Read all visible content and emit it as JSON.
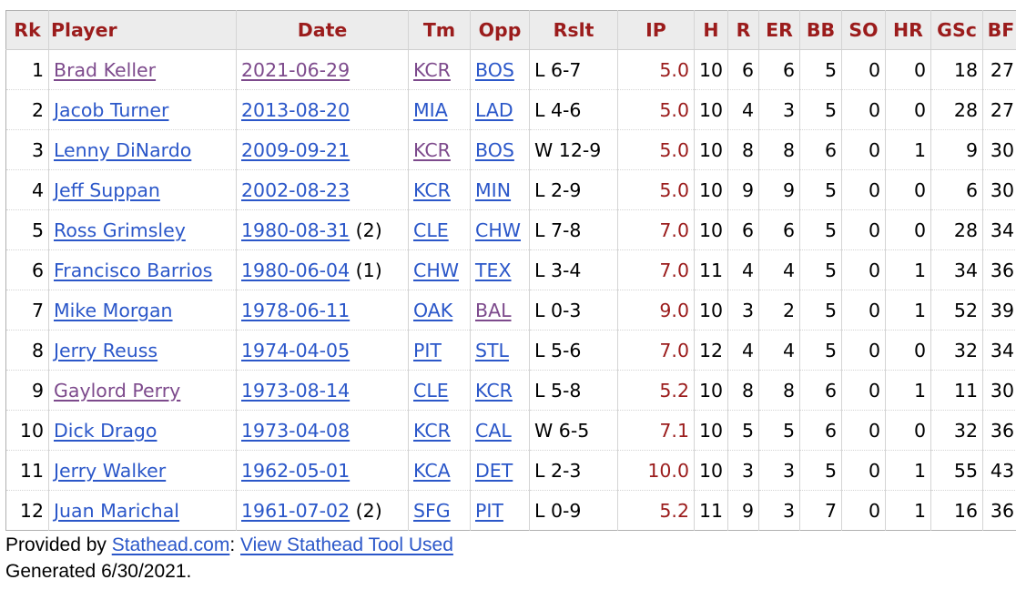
{
  "table": {
    "headers": [
      "Rk",
      "Player",
      "Date",
      "Tm",
      "Opp",
      "Rslt",
      "IP",
      "H",
      "R",
      "ER",
      "BB",
      "SO",
      "HR",
      "GSc",
      "BF"
    ],
    "rows": [
      {
        "rk": "1",
        "player": "Brad Keller",
        "player_visited": true,
        "date": "2021-06-29",
        "date_visited": true,
        "date_note": "",
        "tm": "KCR",
        "tm_visited": true,
        "opp": "BOS",
        "opp_visited": false,
        "rslt": "L 6-7",
        "ip": "5.0",
        "h": "10",
        "r": "6",
        "er": "6",
        "bb": "5",
        "so": "0",
        "hr": "0",
        "gsc": "18",
        "bf": "27"
      },
      {
        "rk": "2",
        "player": "Jacob Turner",
        "player_visited": false,
        "date": "2013-08-20",
        "date_visited": false,
        "date_note": "",
        "tm": "MIA",
        "tm_visited": false,
        "opp": "LAD",
        "opp_visited": false,
        "rslt": "L 4-6",
        "ip": "5.0",
        "h": "10",
        "r": "4",
        "er": "3",
        "bb": "5",
        "so": "0",
        "hr": "0",
        "gsc": "28",
        "bf": "27"
      },
      {
        "rk": "3",
        "player": "Lenny DiNardo",
        "player_visited": false,
        "date": "2009-09-21",
        "date_visited": false,
        "date_note": "",
        "tm": "KCR",
        "tm_visited": true,
        "opp": "BOS",
        "opp_visited": false,
        "rslt": "W 12-9",
        "ip": "5.0",
        "h": "10",
        "r": "8",
        "er": "8",
        "bb": "6",
        "so": "0",
        "hr": "1",
        "gsc": "9",
        "bf": "30"
      },
      {
        "rk": "4",
        "player": "Jeff Suppan",
        "player_visited": false,
        "date": "2002-08-23",
        "date_visited": false,
        "date_note": "",
        "tm": "KCR",
        "tm_visited": false,
        "opp": "MIN",
        "opp_visited": false,
        "rslt": "L 2-9",
        "ip": "5.0",
        "h": "10",
        "r": "9",
        "er": "9",
        "bb": "5",
        "so": "0",
        "hr": "0",
        "gsc": "6",
        "bf": "30"
      },
      {
        "rk": "5",
        "player": "Ross Grimsley",
        "player_visited": false,
        "date": "1980-08-31",
        "date_visited": false,
        "date_note": "(2)",
        "tm": "CLE",
        "tm_visited": false,
        "opp": "CHW",
        "opp_visited": false,
        "rslt": "L 7-8",
        "ip": "7.0",
        "h": "10",
        "r": "6",
        "er": "6",
        "bb": "5",
        "so": "0",
        "hr": "0",
        "gsc": "28",
        "bf": "34"
      },
      {
        "rk": "6",
        "player": "Francisco Barrios",
        "player_visited": false,
        "date": "1980-06-04",
        "date_visited": false,
        "date_note": "(1)",
        "tm": "CHW",
        "tm_visited": false,
        "opp": "TEX",
        "opp_visited": false,
        "rslt": "L 3-4",
        "ip": "7.0",
        "h": "11",
        "r": "4",
        "er": "4",
        "bb": "5",
        "so": "0",
        "hr": "1",
        "gsc": "34",
        "bf": "36"
      },
      {
        "rk": "7",
        "player": "Mike Morgan",
        "player_visited": false,
        "date": "1978-06-11",
        "date_visited": false,
        "date_note": "",
        "tm": "OAK",
        "tm_visited": false,
        "opp": "BAL",
        "opp_visited": true,
        "rslt": "L 0-3",
        "ip": "9.0",
        "h": "10",
        "r": "3",
        "er": "2",
        "bb": "5",
        "so": "0",
        "hr": "1",
        "gsc": "52",
        "bf": "39"
      },
      {
        "rk": "8",
        "player": "Jerry Reuss",
        "player_visited": false,
        "date": "1974-04-05",
        "date_visited": false,
        "date_note": "",
        "tm": "PIT",
        "tm_visited": false,
        "opp": "STL",
        "opp_visited": false,
        "rslt": "L 5-6",
        "ip": "7.0",
        "h": "12",
        "r": "4",
        "er": "4",
        "bb": "5",
        "so": "0",
        "hr": "0",
        "gsc": "32",
        "bf": "34"
      },
      {
        "rk": "9",
        "player": "Gaylord Perry",
        "player_visited": true,
        "date": "1973-08-14",
        "date_visited": false,
        "date_note": "",
        "tm": "CLE",
        "tm_visited": false,
        "opp": "KCR",
        "opp_visited": false,
        "rslt": "L 5-8",
        "ip": "5.2",
        "h": "10",
        "r": "8",
        "er": "8",
        "bb": "6",
        "so": "0",
        "hr": "1",
        "gsc": "11",
        "bf": "30"
      },
      {
        "rk": "10",
        "player": "Dick Drago",
        "player_visited": false,
        "date": "1973-04-08",
        "date_visited": false,
        "date_note": "",
        "tm": "KCR",
        "tm_visited": false,
        "opp": "CAL",
        "opp_visited": false,
        "rslt": "W 6-5",
        "ip": "7.1",
        "h": "10",
        "r": "5",
        "er": "5",
        "bb": "6",
        "so": "0",
        "hr": "0",
        "gsc": "32",
        "bf": "36"
      },
      {
        "rk": "11",
        "player": "Jerry Walker",
        "player_visited": false,
        "date": "1962-05-01",
        "date_visited": false,
        "date_note": "",
        "tm": "KCA",
        "tm_visited": false,
        "opp": "DET",
        "opp_visited": false,
        "rslt": "L 2-3",
        "ip": "10.0",
        "h": "10",
        "r": "3",
        "er": "3",
        "bb": "5",
        "so": "0",
        "hr": "1",
        "gsc": "55",
        "bf": "43"
      },
      {
        "rk": "12",
        "player": "Juan Marichal",
        "player_visited": false,
        "date": "1961-07-02",
        "date_visited": false,
        "date_note": "(2)",
        "tm": "SFG",
        "tm_visited": false,
        "opp": "PIT",
        "opp_visited": false,
        "rslt": "L 0-9",
        "ip": "5.2",
        "h": "11",
        "r": "9",
        "er": "3",
        "bb": "7",
        "so": "0",
        "hr": "1",
        "gsc": "16",
        "bf": "36"
      }
    ]
  },
  "footer": {
    "provided_by_prefix": "Provided by ",
    "stathead_link": "Stathead.com",
    "separator": ": ",
    "tool_link": "View Stathead Tool Used",
    "generated": "Generated 6/30/2021."
  },
  "colors": {
    "header_text": "#9b1c1c",
    "link": "#2b57c9",
    "visited_link": "#7d4a8c",
    "ip_text": "#9b1c1c",
    "header_bg": "#ececec"
  }
}
